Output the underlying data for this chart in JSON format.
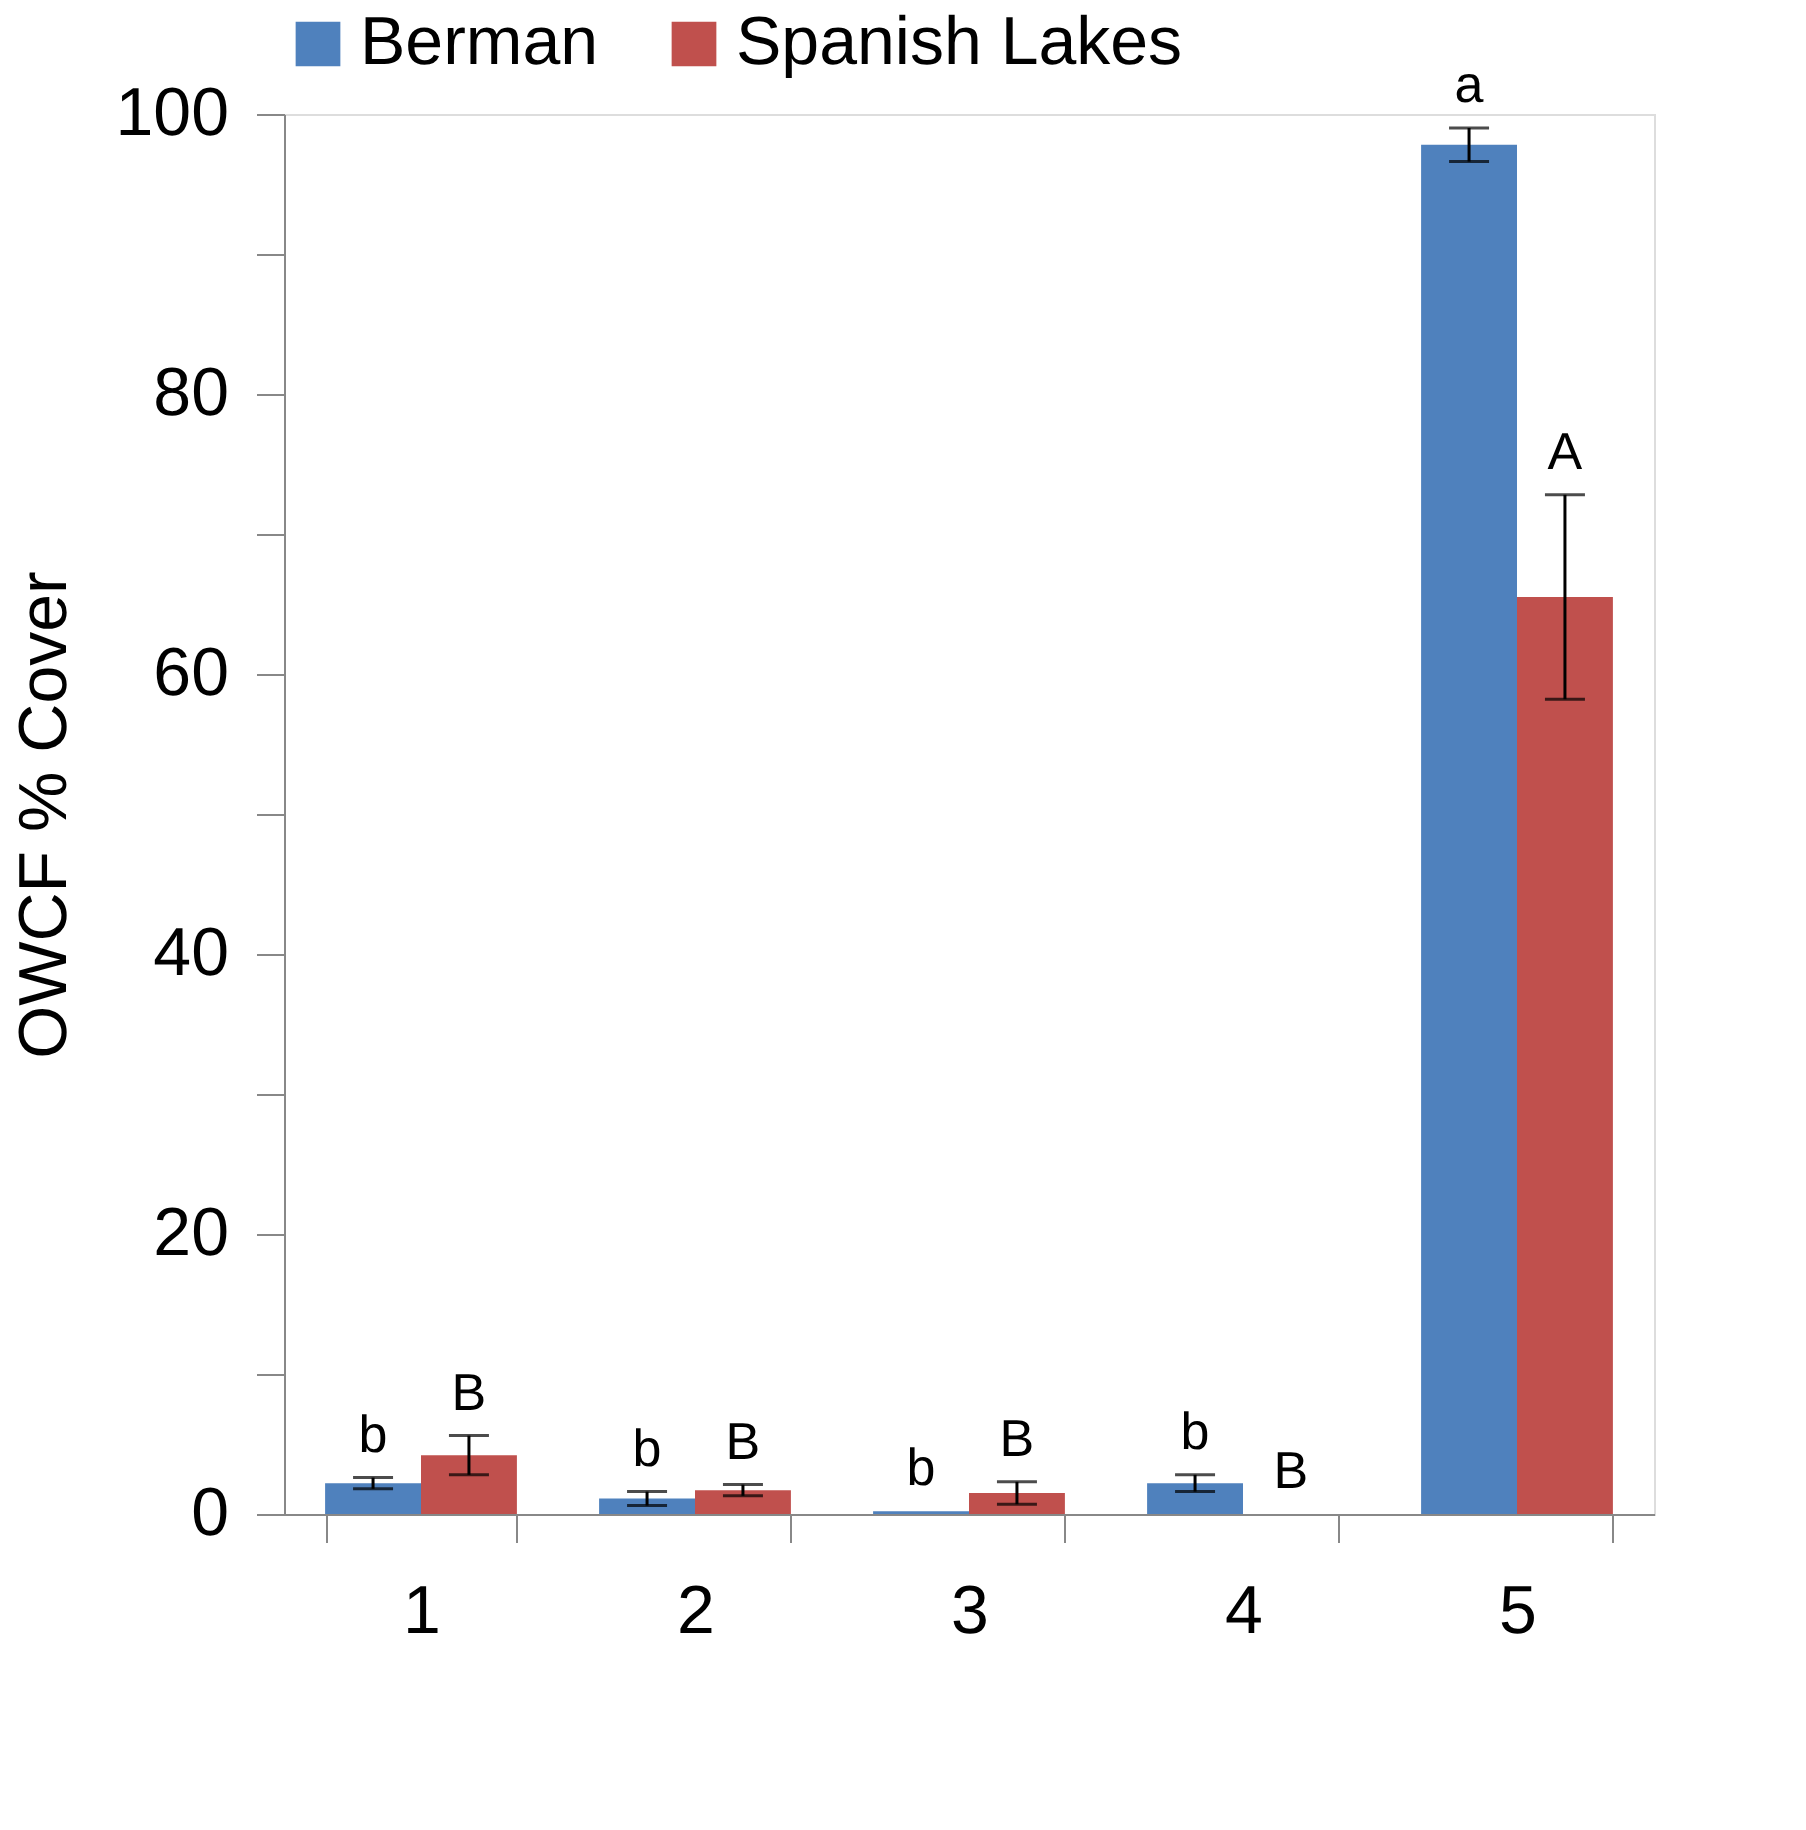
{
  "chart_data": {
    "type": "bar",
    "ylabel": "OWCF % Cover",
    "categories": [
      "1",
      "2",
      "3",
      "4",
      "5"
    ],
    "series": [
      {
        "name": "Berman",
        "color": "#4f81bd",
        "values": [
          2.2,
          1.1,
          0.2,
          2.2,
          97.8
        ],
        "errors": [
          0.4,
          0.5,
          null,
          0.6,
          1.2
        ]
      },
      {
        "name": "Spanish Lakes",
        "color": "#c0504d",
        "values": [
          4.2,
          1.7,
          1.5,
          0,
          65.5
        ],
        "errors": [
          1.4,
          0.4,
          0.8,
          null,
          7.3
        ]
      }
    ],
    "ylim": [
      0,
      100
    ],
    "yticks": [
      0,
      {
        "value": 10,
        "label": null
      },
      20,
      {
        "value": 30,
        "label": null
      },
      40,
      {
        "value": 50,
        "label": null
      },
      60,
      {
        "value": 70,
        "label": null
      },
      80,
      {
        "value": 90,
        "label": null
      },
      100
    ],
    "annotations": [
      "b",
      "B",
      "b",
      "B",
      "b",
      "B",
      "b",
      "B",
      "a",
      "A"
    ],
    "grid": false,
    "legend": "top"
  }
}
